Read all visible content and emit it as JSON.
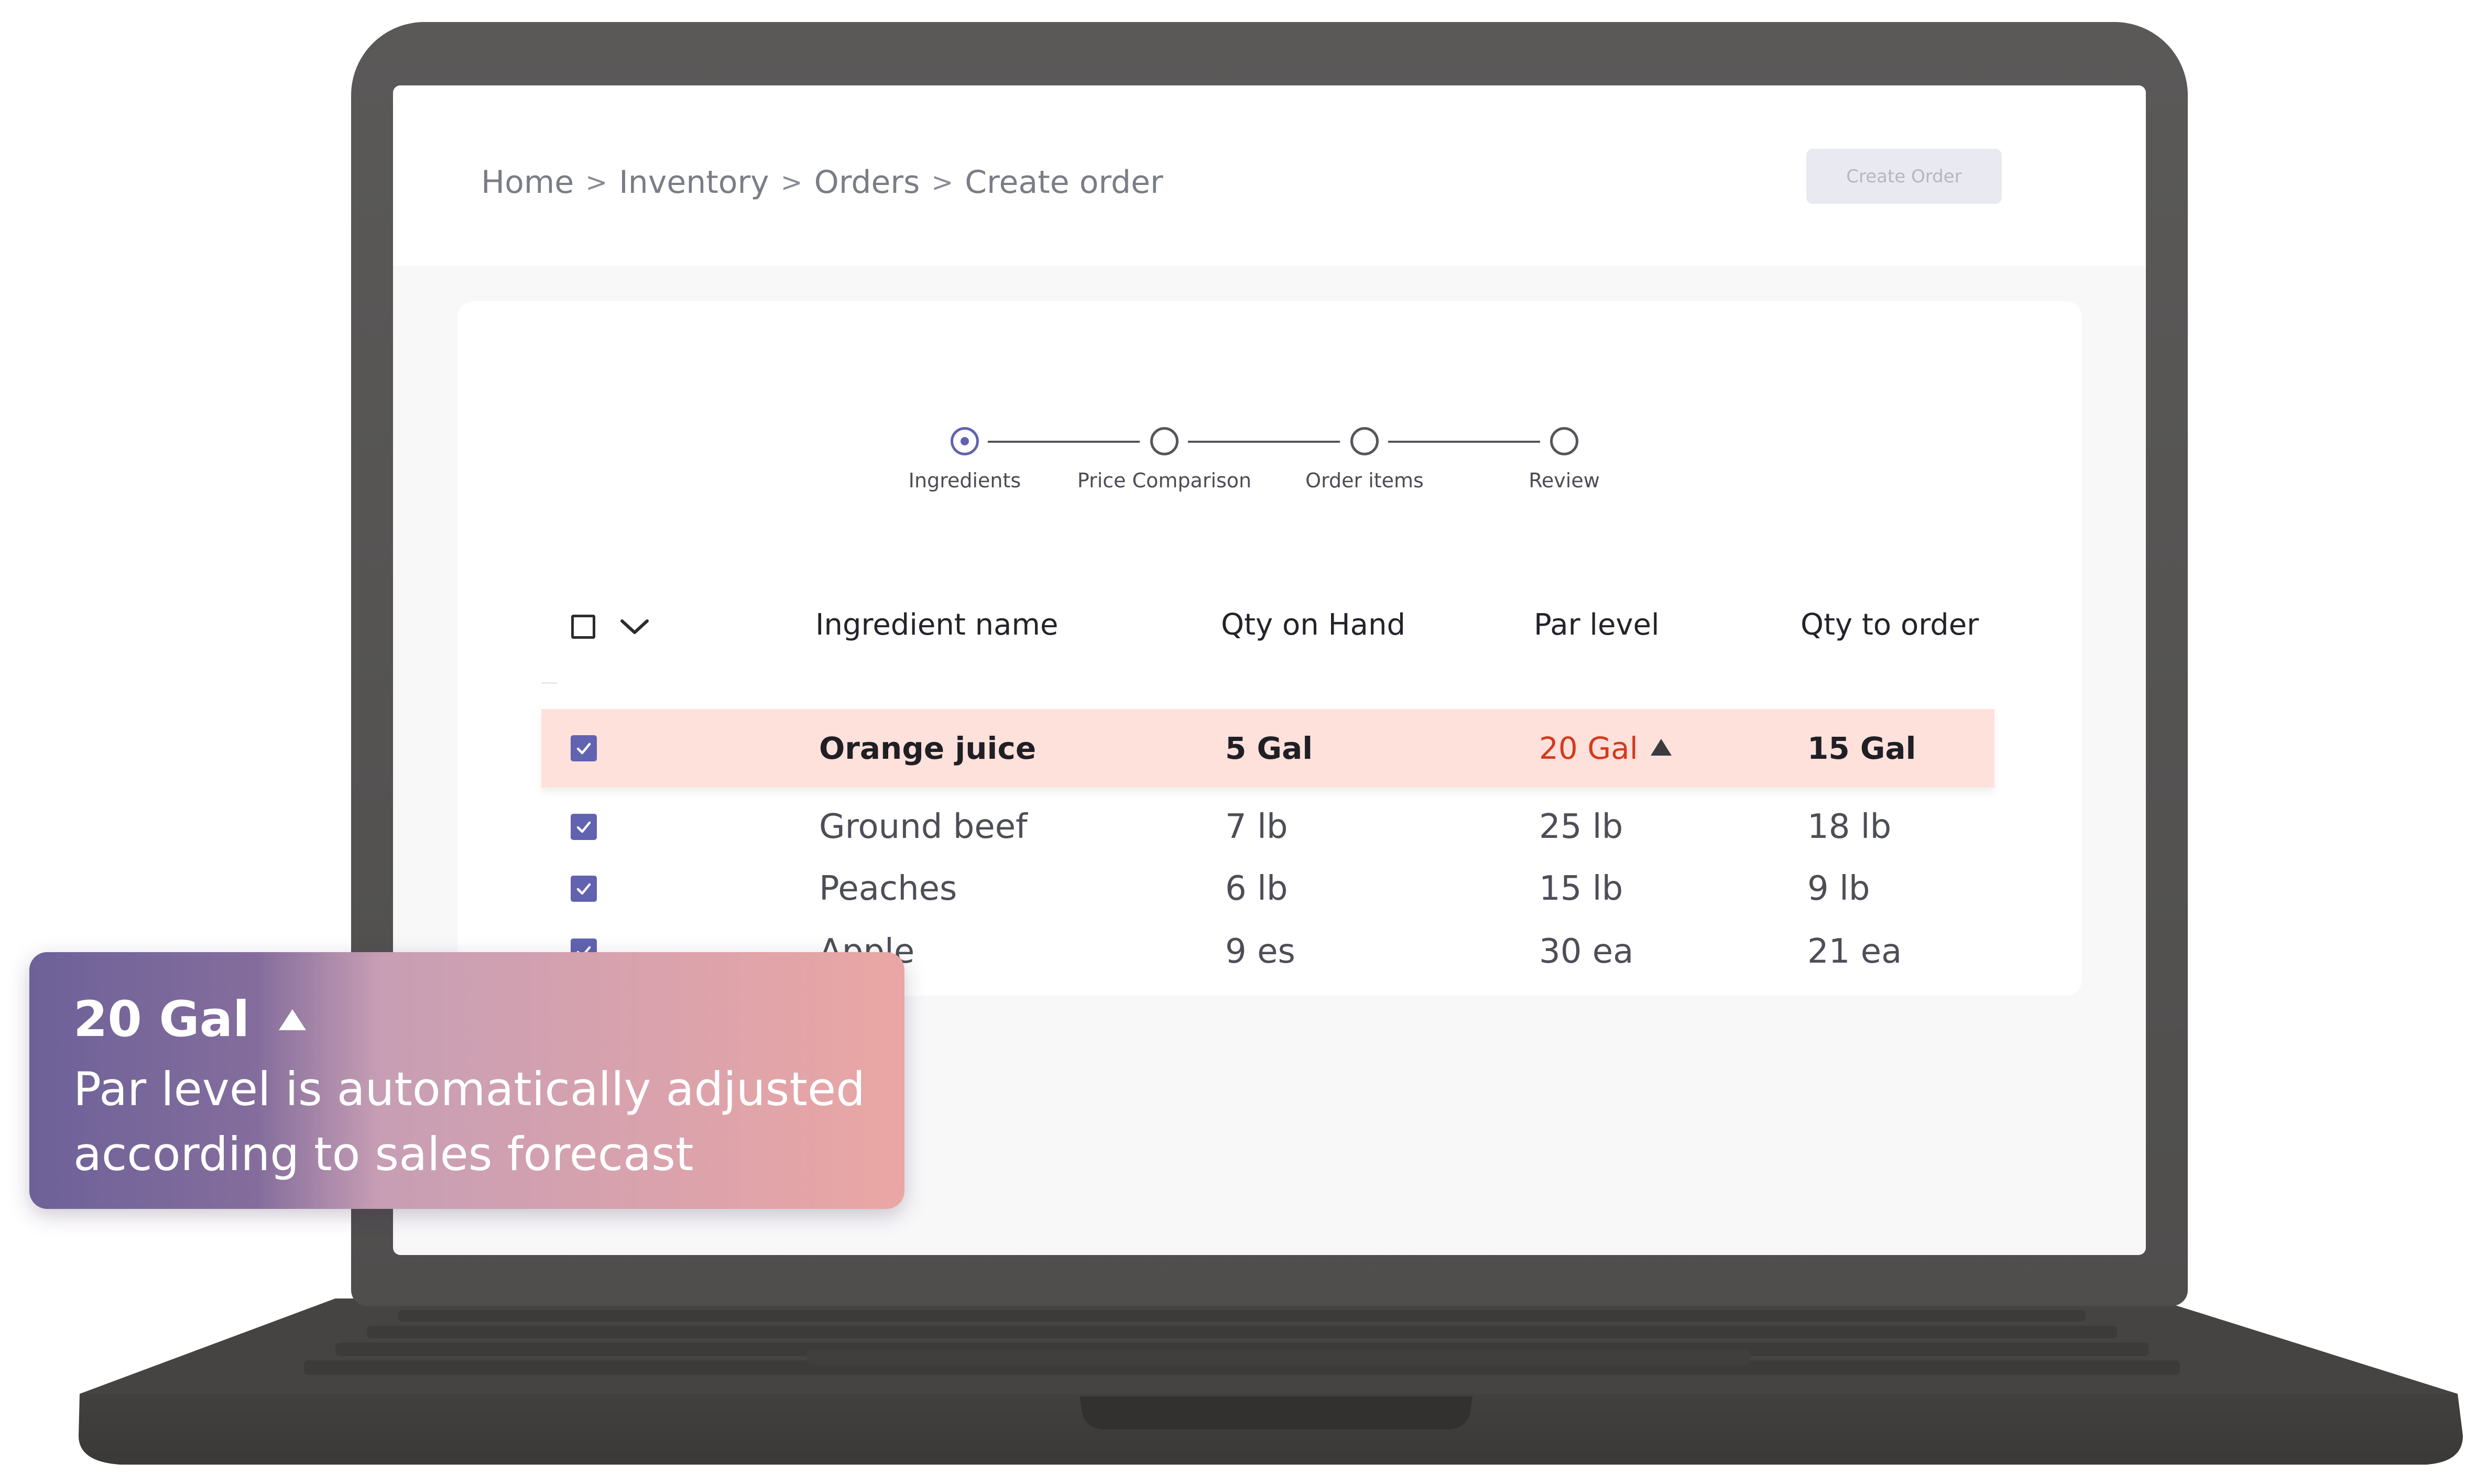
{
  "breadcrumb": [
    "Home",
    "Inventory",
    "Orders",
    "Create order"
  ],
  "breadcrumb_separator": ">",
  "create_order_button": "Create Order",
  "stepper": {
    "steps": [
      "Ingredients",
      "Price Comparison",
      "Order items",
      "Review"
    ],
    "active_index": 0
  },
  "table": {
    "headers": {
      "name": "Ingredient name",
      "qty_on_hand": "Qty on Hand",
      "par_level": "Par level",
      "qty_to_order": "Qty to order"
    },
    "rows": [
      {
        "name": "Orange juice",
        "qty_on_hand": "5 Gal",
        "par_level": "20 Gal",
        "qty_to_order": "15 Gal",
        "checked": true,
        "highlighted": true
      },
      {
        "name": "Ground beef",
        "qty_on_hand": "7 lb",
        "par_level": "25 lb",
        "qty_to_order": "18 lb",
        "checked": true
      },
      {
        "name": "Peaches",
        "qty_on_hand": "6 lb",
        "par_level": "15 lb",
        "qty_to_order": "9 lb",
        "checked": true
      },
      {
        "name": "Apple",
        "qty_on_hand": "9 es",
        "par_level": "30 ea",
        "qty_to_order": "21 ea",
        "checked": true
      }
    ]
  },
  "callout": {
    "title": "20 Gal",
    "line1": "Par level is automatically adjusted",
    "line2": "according to sales forecast"
  },
  "colors": {
    "accent": "#6163b0",
    "highlight_row": "#ffe1db",
    "par_alert": "#d43a1f",
    "laptop_body": "#545352"
  },
  "icons": [
    "chevron-down-icon",
    "check-icon",
    "arrow-up-icon",
    "checkbox-icon"
  ]
}
